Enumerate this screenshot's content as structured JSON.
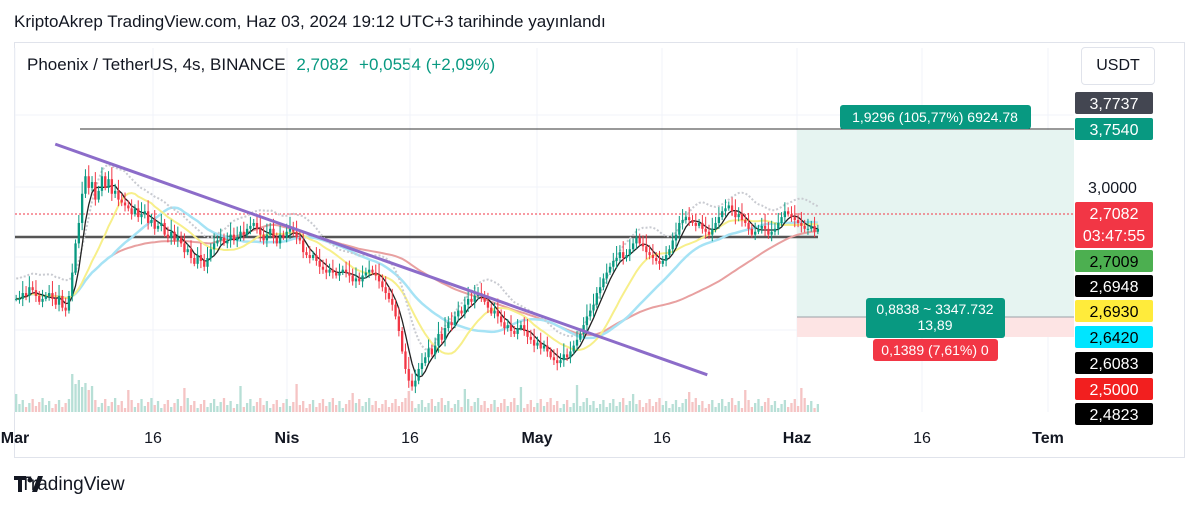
{
  "published": "KriptoAkrep TradingView.com, Haz 03, 2024 19:12 UTC+3 tarihinde yayınlandı",
  "legend": {
    "symbol": "Phoenix / TetherUS, 4s, BINANCE",
    "price": "2,7082",
    "change": "+0,0554 (+2,09%)"
  },
  "currency": "USDT",
  "brand": "TradingView",
  "colors": {
    "up": "#089981",
    "down": "#f23645",
    "trendline": "#8c6cc9",
    "target_zone": "#e6f4f1",
    "stop_zone": "#fde4e4"
  },
  "chart_data": {
    "type": "candlestick",
    "x_ticks": [
      {
        "label": "Mar",
        "bold": true
      },
      {
        "label": "16",
        "bold": false
      },
      {
        "label": "Nis",
        "bold": true
      },
      {
        "label": "16",
        "bold": false
      },
      {
        "label": "May",
        "bold": true
      },
      {
        "label": "16",
        "bold": false
      },
      {
        "label": "Haz",
        "bold": true
      },
      {
        "label": "16",
        "bold": false
      },
      {
        "label": "Tem",
        "bold": true
      }
    ],
    "price_ticks": [
      "3,0000"
    ],
    "price_scale_labels": [
      {
        "value": "3,7737",
        "bg": "#434651",
        "fg": "#ffffff"
      },
      {
        "value": "3,7540",
        "bg": "#089981",
        "fg": "#ffffff"
      },
      {
        "value": "2,7082",
        "sub": "03:47:55",
        "bg": "#f23645",
        "fg": "#ffffff"
      },
      {
        "value": "2,7009",
        "bg": "#4caf50",
        "fg": "#000000"
      },
      {
        "value": "2,6948",
        "bg": "#000000",
        "fg": "#ffffff"
      },
      {
        "value": "2,6930",
        "bg": "#ffeb3b",
        "fg": "#000000"
      },
      {
        "value": "2,6420",
        "bg": "#00e5ff",
        "fg": "#000000"
      },
      {
        "value": "2,6083",
        "bg": "#000000",
        "fg": "#ffffff"
      },
      {
        "value": "2,5000",
        "bg": "#f21f1f",
        "fg": "#ffffff"
      },
      {
        "value": "2,4823",
        "bg": "#000000",
        "fg": "#ffffff"
      }
    ],
    "position": {
      "target_label": "1,9296 (105,77%) 6924.78",
      "entry_label": [
        "0,8838 ~ 3347.732",
        "13,89"
      ],
      "stop_label": "0,1389 (7,61%) 0"
    },
    "close_series": [
      0.36,
      0.36,
      0.38,
      0.37,
      0.4,
      0.39,
      0.37,
      0.35,
      0.36,
      0.37,
      0.38,
      0.36,
      0.34,
      0.37,
      0.33,
      0.32,
      0.37,
      0.45,
      0.55,
      0.62,
      0.72,
      0.78,
      0.74,
      0.76,
      0.7,
      0.73,
      0.78,
      0.74,
      0.77,
      0.72,
      0.73,
      0.7,
      0.69,
      0.68,
      0.67,
      0.65,
      0.67,
      0.64,
      0.65,
      0.66,
      0.62,
      0.63,
      0.6,
      0.61,
      0.62,
      0.58,
      0.57,
      0.59,
      0.56,
      0.57,
      0.55,
      0.52,
      0.53,
      0.5,
      0.48,
      0.51,
      0.49,
      0.47,
      0.5,
      0.53,
      0.55,
      0.56,
      0.57,
      0.55,
      0.56,
      0.58,
      0.56,
      0.57,
      0.59,
      0.58,
      0.6,
      0.61,
      0.62,
      0.6,
      0.58,
      0.56,
      0.58,
      0.6,
      0.57,
      0.55,
      0.58,
      0.57,
      0.59,
      0.6,
      0.59,
      0.57,
      0.56,
      0.52,
      0.51,
      0.5,
      0.51,
      0.49,
      0.47,
      0.46,
      0.45,
      0.46,
      0.45,
      0.44,
      0.45,
      0.46,
      0.45,
      0.44,
      0.42,
      0.43,
      0.42,
      0.44,
      0.45,
      0.46,
      0.45,
      0.44,
      0.42,
      0.4,
      0.38,
      0.36,
      0.34,
      0.3,
      0.25,
      0.18,
      0.12,
      0.08,
      0.06,
      0.08,
      0.12,
      0.14,
      0.16,
      0.19,
      0.17,
      0.2,
      0.24,
      0.22,
      0.26,
      0.28,
      0.27,
      0.3,
      0.32,
      0.31,
      0.34,
      0.36,
      0.35,
      0.37,
      0.38,
      0.37,
      0.35,
      0.33,
      0.31,
      0.32,
      0.3,
      0.28,
      0.26,
      0.27,
      0.25,
      0.24,
      0.26,
      0.27,
      0.25,
      0.23,
      0.22,
      0.2,
      0.21,
      0.19,
      0.2,
      0.18,
      0.16,
      0.15,
      0.14,
      0.15,
      0.17,
      0.16,
      0.18,
      0.2,
      0.22,
      0.24,
      0.27,
      0.3,
      0.32,
      0.34,
      0.38,
      0.4,
      0.43,
      0.45,
      0.47,
      0.49,
      0.5,
      0.52,
      0.5,
      0.51,
      0.53,
      0.55,
      0.57,
      0.55,
      0.54,
      0.52,
      0.51,
      0.5,
      0.49,
      0.48,
      0.49,
      0.51,
      0.53,
      0.56,
      0.58,
      0.62,
      0.63,
      0.64,
      0.63,
      0.62,
      0.61,
      0.62,
      0.6,
      0.59,
      0.58,
      0.6,
      0.62,
      0.64,
      0.66,
      0.67,
      0.68,
      0.66,
      0.64,
      0.65,
      0.63,
      0.62,
      0.6,
      0.58,
      0.59,
      0.6,
      0.61,
      0.6,
      0.58,
      0.59,
      0.6,
      0.62,
      0.64,
      0.66,
      0.65,
      0.64,
      0.63,
      0.62,
      0.61,
      0.6,
      0.6,
      0.61,
      0.59,
      0.6
    ],
    "trendline": {
      "from": [
        0.05,
        0.89
      ],
      "to": [
        0.86,
        0.1
      ]
    }
  }
}
